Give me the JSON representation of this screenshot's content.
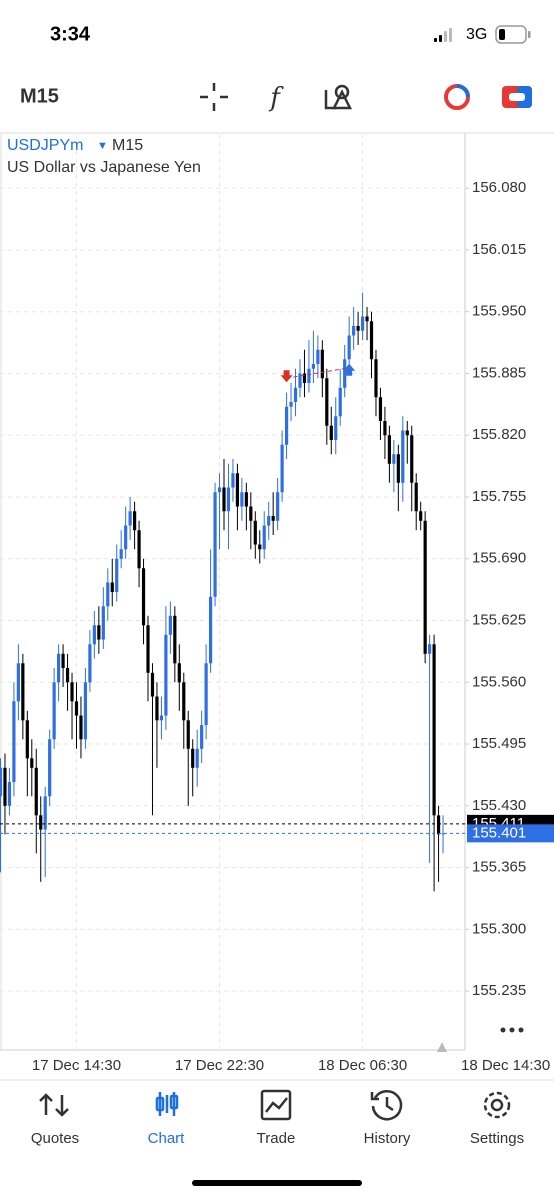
{
  "status_bar": {
    "time": "3:34",
    "network": "3G"
  },
  "toolbar": {
    "timeframe": "M15"
  },
  "chart_data": {
    "type": "candlestick",
    "symbol": "USDJPYm",
    "timeframe": "M15",
    "title": "US Dollar vs Japanese Yen",
    "categories": [
      null,
      null,
      null,
      null,
      null,
      null,
      null,
      null,
      null,
      null,
      null,
      null,
      null,
      null,
      null,
      null,
      null,
      "17 Dec 14:30",
      null,
      null,
      null,
      null,
      null,
      null,
      null,
      null,
      null,
      null,
      null,
      null,
      null,
      null,
      null,
      null,
      null,
      null,
      null,
      null,
      null,
      null,
      null,
      null,
      null,
      null,
      null,
      null,
      null,
      null,
      null,
      "17 Dec 22:30",
      null,
      null,
      null,
      null,
      null,
      null,
      null,
      null,
      null,
      null,
      null,
      null,
      null,
      null,
      null,
      null,
      null,
      null,
      null,
      null,
      null,
      null,
      null,
      null,
      null,
      null,
      null,
      null,
      null,
      null,
      null,
      "18 Dec 06:30",
      null,
      null,
      null,
      null,
      null,
      null,
      null,
      null,
      null,
      null,
      null,
      null,
      null,
      null,
      null,
      null,
      null,
      null,
      null,
      null,
      null,
      null,
      null,
      null,
      null,
      null,
      null,
      null,
      null,
      null,
      null,
      "18 Dec 14:30"
    ],
    "open": [
      155.44,
      155.47,
      155.43,
      155.455,
      155.54,
      155.58,
      155.52,
      155.48,
      155.47,
      155.42,
      155.405,
      155.44,
      155.5,
      155.56,
      155.59,
      155.575,
      155.56,
      155.54,
      155.525,
      155.5,
      155.56,
      155.6,
      155.62,
      155.605,
      155.64,
      155.665,
      155.655,
      155.69,
      155.7,
      155.725,
      155.74,
      155.72,
      155.68,
      155.62,
      155.57,
      155.545,
      155.52,
      155.525,
      155.61,
      155.63,
      155.58,
      155.56,
      155.52,
      155.49,
      155.47,
      155.49,
      155.515,
      155.58,
      155.65,
      155.76,
      155.765,
      155.74,
      155.765,
      155.78,
      155.745,
      155.76,
      155.745,
      155.73,
      155.705,
      155.7,
      155.725,
      155.735,
      155.73,
      155.76,
      155.81,
      155.85,
      155.855,
      155.87,
      155.885,
      155.875,
      155.89,
      155.895,
      155.91,
      155.88,
      155.83,
      155.815,
      155.84,
      155.87,
      155.9,
      155.925,
      155.935,
      155.93,
      155.945,
      155.94,
      155.9,
      155.86,
      155.835,
      155.82,
      155.79,
      155.8,
      155.77,
      155.825,
      155.82,
      155.77,
      155.74,
      155.73,
      155.59,
      155.6,
      155.42,
      155.4,
      null,
      null,
      null,
      null,
      null,
      null,
      null,
      null,
      null,
      null,
      null,
      null,
      null,
      null
    ],
    "high": [
      155.48,
      155.485,
      155.47,
      155.56,
      155.6,
      155.59,
      155.53,
      155.5,
      155.49,
      155.44,
      155.45,
      155.51,
      155.575,
      155.6,
      155.6,
      155.59,
      155.57,
      155.56,
      155.545,
      155.575,
      155.615,
      155.635,
      155.64,
      155.66,
      155.68,
      155.69,
      155.705,
      155.72,
      155.745,
      155.755,
      155.75,
      155.73,
      155.69,
      155.63,
      155.58,
      155.56,
      155.545,
      155.64,
      155.645,
      155.64,
      155.6,
      155.57,
      155.53,
      155.5,
      155.51,
      155.53,
      155.6,
      155.7,
      155.77,
      155.78,
      155.795,
      155.79,
      155.795,
      155.79,
      155.775,
      155.77,
      155.76,
      155.74,
      155.72,
      155.74,
      155.75,
      155.76,
      155.775,
      155.825,
      155.865,
      155.875,
      155.89,
      155.9,
      155.91,
      155.92,
      155.93,
      155.925,
      155.92,
      155.89,
      155.85,
      155.86,
      155.89,
      155.915,
      155.945,
      155.955,
      155.95,
      155.97,
      155.955,
      155.95,
      155.91,
      155.87,
      155.85,
      155.83,
      155.815,
      155.81,
      155.84,
      155.835,
      155.83,
      155.78,
      155.75,
      155.74,
      155.61,
      155.61,
      155.43,
      155.42,
      null,
      null,
      null,
      null,
      null,
      null,
      null,
      null,
      null,
      null,
      null,
      null,
      null,
      null
    ],
    "low": [
      155.36,
      155.4,
      155.42,
      155.44,
      155.52,
      155.5,
      155.44,
      155.44,
      155.38,
      155.35,
      155.355,
      155.43,
      155.49,
      155.54,
      155.555,
      155.53,
      155.5,
      155.49,
      155.48,
      155.49,
      155.55,
      155.585,
      155.59,
      155.595,
      155.625,
      155.64,
      155.645,
      155.68,
      155.69,
      155.71,
      155.7,
      155.66,
      155.6,
      155.54,
      155.42,
      155.47,
      155.5,
      155.51,
      155.59,
      155.56,
      155.53,
      155.49,
      155.43,
      155.44,
      155.45,
      155.475,
      155.5,
      155.57,
      155.64,
      155.7,
      155.72,
      155.7,
      155.75,
      155.72,
      155.73,
      155.72,
      155.7,
      155.69,
      155.685,
      155.69,
      155.71,
      155.715,
      155.72,
      155.75,
      155.795,
      155.835,
      155.84,
      155.86,
      155.86,
      155.865,
      155.875,
      155.88,
      155.86,
      155.81,
      155.8,
      155.8,
      155.83,
      155.86,
      155.89,
      155.91,
      155.915,
      155.92,
      155.92,
      155.88,
      155.84,
      155.815,
      155.795,
      155.77,
      155.76,
      155.74,
      155.75,
      155.79,
      155.74,
      155.72,
      155.72,
      155.58,
      155.37,
      155.34,
      155.35,
      155.38,
      null,
      null,
      null,
      null,
      null,
      null,
      null,
      null,
      null,
      null,
      null,
      null,
      null,
      null
    ],
    "close": [
      155.47,
      155.43,
      155.455,
      155.54,
      155.58,
      155.52,
      155.48,
      155.47,
      155.42,
      155.405,
      155.44,
      155.5,
      155.56,
      155.59,
      155.575,
      155.56,
      155.54,
      155.525,
      155.5,
      155.56,
      155.6,
      155.62,
      155.605,
      155.64,
      155.665,
      155.655,
      155.69,
      155.7,
      155.725,
      155.74,
      155.72,
      155.68,
      155.62,
      155.57,
      155.545,
      155.52,
      155.525,
      155.61,
      155.63,
      155.58,
      155.56,
      155.52,
      155.49,
      155.47,
      155.49,
      155.515,
      155.58,
      155.65,
      155.76,
      155.765,
      155.74,
      155.765,
      155.78,
      155.745,
      155.76,
      155.745,
      155.73,
      155.705,
      155.7,
      155.725,
      155.735,
      155.73,
      155.76,
      155.81,
      155.85,
      155.855,
      155.87,
      155.885,
      155.875,
      155.89,
      155.895,
      155.91,
      155.88,
      155.83,
      155.815,
      155.84,
      155.87,
      155.9,
      155.925,
      155.935,
      155.93,
      155.945,
      155.94,
      155.9,
      155.86,
      155.835,
      155.82,
      155.79,
      155.8,
      155.77,
      155.825,
      155.82,
      155.77,
      155.74,
      155.73,
      155.59,
      155.6,
      155.42,
      155.4,
      155.401,
      null,
      null,
      null,
      null,
      null,
      null,
      null,
      null,
      null,
      null,
      null,
      null,
      null,
      null
    ],
    "up_color": "#2f6fe4",
    "down_color": "#000000",
    "ylim": [
      155.173,
      156.136
    ],
    "yticks": [
      {
        "value": 156.08,
        "label": "156.080"
      },
      156.015,
      {
        "value": 155.95,
        "label": "155.950"
      },
      155.885,
      {
        "value": 155.82,
        "label": "155.820"
      },
      155.755,
      {
        "value": 155.69,
        "label": "155.690"
      },
      155.625,
      {
        "value": 155.56,
        "label": "155.560"
      },
      155.495,
      {
        "value": 155.43,
        "label": "155.430"
      },
      155.365,
      {
        "value": 155.3,
        "label": "155.300"
      },
      155.235
    ],
    "grid": true,
    "price_lines": [
      {
        "value": 155.411,
        "color": "#000000"
      },
      {
        "value": 155.401,
        "color": "#2f6fe4"
      }
    ],
    "trade_markers": [
      {
        "index": 64,
        "price": 155.88,
        "direction": "down",
        "color": "#d93025"
      },
      {
        "index": 78,
        "price": 155.891,
        "direction": "up",
        "color": "#2f6fe4"
      }
    ]
  },
  "tab_bar": {
    "tabs": [
      {
        "label": "Quotes"
      },
      {
        "label": "Chart"
      },
      {
        "label": "Trade"
      },
      {
        "label": "History"
      },
      {
        "label": "Settings"
      }
    ],
    "active": 1
  }
}
